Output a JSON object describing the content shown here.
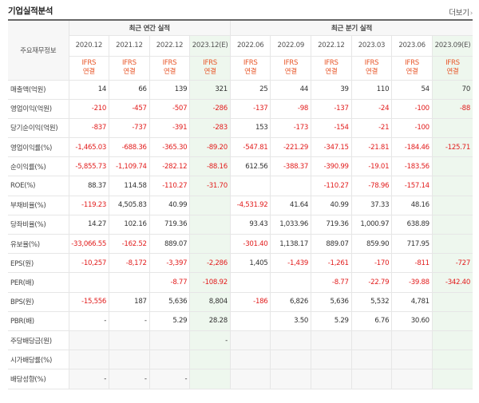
{
  "header": {
    "title": "기업실적분석",
    "more": "더보기",
    "more_arrow": "›"
  },
  "table": {
    "corner_label": "주요재무정보",
    "group_annual": "최근 연간 실적",
    "group_quarter": "최근 분기 실적",
    "periods": [
      "2020.12",
      "2021.12",
      "2022.12",
      "2023.12(E)",
      "2022.06",
      "2022.09",
      "2022.12",
      "2023.03",
      "2023.06",
      "2023.09(E)"
    ],
    "estimate_cols": [
      3,
      9
    ],
    "ifrs_top": "IFRS",
    "ifrs_bottom": "연결",
    "rows": [
      {
        "label": "매출액(억원)",
        "values": [
          "14",
          "66",
          "139",
          "321",
          "25",
          "44",
          "39",
          "110",
          "54",
          "70"
        ]
      },
      {
        "label": "영업이익(억원)",
        "values": [
          "-210",
          "-457",
          "-507",
          "-286",
          "-137",
          "-98",
          "-137",
          "-24",
          "-100",
          "-88"
        ]
      },
      {
        "label": "당기순이익(억원)",
        "values": [
          "-837",
          "-737",
          "-391",
          "-283",
          "153",
          "-173",
          "-154",
          "-21",
          "-100",
          ""
        ]
      },
      {
        "label": "영업이익률(%)",
        "values": [
          "-1,465.03",
          "-688.36",
          "-365.30",
          "-89.20",
          "-547.81",
          "-221.29",
          "-347.15",
          "-21.81",
          "-184.46",
          "-125.71"
        ]
      },
      {
        "label": "순이익률(%)",
        "values": [
          "-5,855.73",
          "-1,109.74",
          "-282.12",
          "-88.16",
          "612.56",
          "-388.37",
          "-390.99",
          "-19.01",
          "-183.56",
          ""
        ]
      },
      {
        "label": "ROE(%)",
        "values": [
          "88.37",
          "114.58",
          "-110.27",
          "-31.70",
          "",
          "",
          "-110.27",
          "-78.96",
          "-157.14",
          ""
        ]
      },
      {
        "label": "부채비율(%)",
        "values": [
          "-119.23",
          "4,505.83",
          "40.99",
          "",
          "-4,531.92",
          "41.64",
          "40.99",
          "37.33",
          "48.16",
          ""
        ]
      },
      {
        "label": "당좌비율(%)",
        "values": [
          "14.27",
          "102.16",
          "719.36",
          "",
          "93.43",
          "1,033.96",
          "719.36",
          "1,000.97",
          "638.89",
          ""
        ]
      },
      {
        "label": "유보율(%)",
        "values": [
          "-33,066.55",
          "-162.52",
          "889.07",
          "",
          "-301.40",
          "1,138.17",
          "889.07",
          "859.90",
          "717.95",
          ""
        ]
      },
      {
        "label": "EPS(원)",
        "values": [
          "-10,257",
          "-8,172",
          "-3,397",
          "-2,286",
          "1,405",
          "-1,439",
          "-1,261",
          "-170",
          "-811",
          "-727"
        ]
      },
      {
        "label": "PER(배)",
        "values": [
          "",
          "",
          "-8.77",
          "-108.92",
          "",
          "",
          "-8.77",
          "-22.79",
          "-39.88",
          "-342.40"
        ]
      },
      {
        "label": "BPS(원)",
        "values": [
          "-15,556",
          "187",
          "5,636",
          "8,804",
          "-186",
          "6,826",
          "5,636",
          "5,532",
          "4,781",
          ""
        ]
      },
      {
        "label": "PBR(배)",
        "values": [
          "-",
          "-",
          "5.29",
          "28.28",
          "",
          "3.50",
          "5.29",
          "6.76",
          "30.60",
          ""
        ]
      },
      {
        "label": "주당배당금(원)",
        "values": [
          "",
          "",
          "",
          "-",
          "",
          "",
          "",
          "",
          "",
          ""
        ]
      },
      {
        "label": "시가배당률(%)",
        "values": [
          "",
          "",
          "",
          "",
          "",
          "",
          "",
          "",
          "",
          ""
        ]
      },
      {
        "label": "배당성향(%)",
        "values": [
          "-",
          "-",
          "-",
          "",
          "",
          "",
          "",
          "",
          "",
          ""
        ]
      }
    ]
  },
  "colors": {
    "negative": "#e21d1d",
    "ifrs": "#e8572a",
    "estimate_bg": "#eef7ee"
  }
}
